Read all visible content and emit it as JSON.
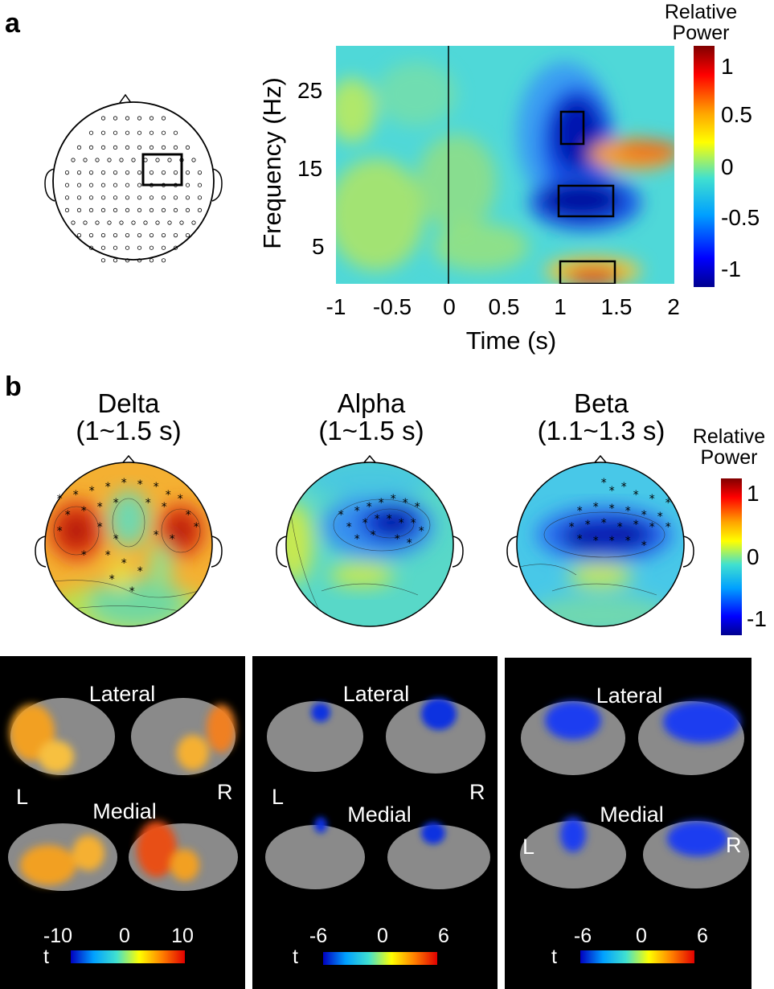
{
  "panel_a": {
    "letter": "a",
    "colorbar": {
      "title_line1": "Relative",
      "title_line2": "Power",
      "ticks": [
        "1",
        "0.5",
        "0",
        "-0.5",
        "-1"
      ]
    },
    "tfr": {
      "ylabel": "Frequency (Hz)",
      "xlabel": "Time (s)",
      "yticks": [
        "25",
        "15",
        "5"
      ],
      "xticks": [
        "-1",
        "-0.5",
        "0",
        "0.5",
        "1",
        "1.5",
        "2"
      ]
    }
  },
  "panel_b": {
    "letter": "b",
    "topos": [
      {
        "title_line1": "Delta",
        "title_line2": "(1~1.5 s)"
      },
      {
        "title_line1": "Alpha",
        "title_line2": "(1~1.5 s)"
      },
      {
        "title_line1": "Beta",
        "title_line2": "(1.1~1.3 s)"
      }
    ],
    "colorbar": {
      "title_line1": "Relative",
      "title_line2": "Power",
      "ticks": [
        "1",
        "0",
        "-1"
      ]
    },
    "brains": [
      {
        "lateral": "Lateral",
        "medial": "Medial",
        "left": "L",
        "right": "R",
        "t": "t",
        "ticks": [
          "-10",
          "0",
          "10"
        ]
      },
      {
        "lateral": "Lateral",
        "medial": "Medial",
        "left": "L",
        "right": "R",
        "t": "t",
        "ticks": [
          "-6",
          "0",
          "6"
        ]
      },
      {
        "lateral": "Lateral",
        "medial": "Medial",
        "left": "L",
        "right": "R",
        "t": "t",
        "ticks": [
          "-6",
          "0",
          "6"
        ]
      }
    ]
  },
  "colors": {
    "jet_low": "#00008f",
    "jet_mid": "#3fe0d0",
    "jet_high": "#800000",
    "cortex": "#8a8a8a"
  }
}
